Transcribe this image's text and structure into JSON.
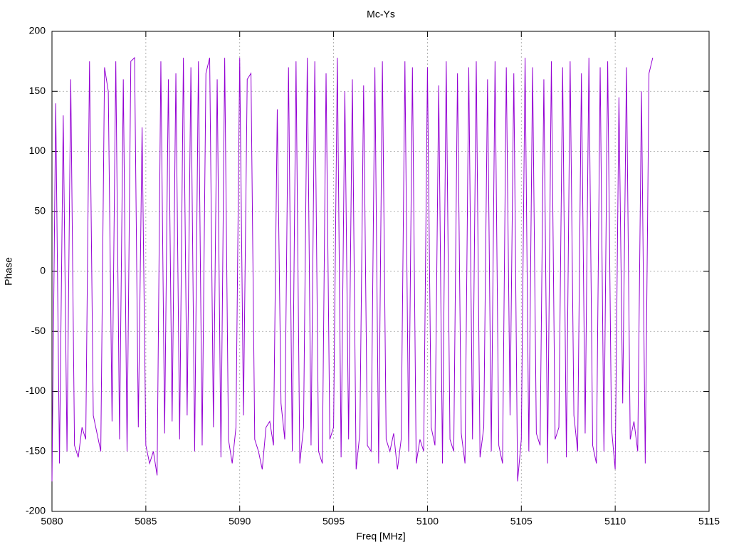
{
  "chart_data": {
    "type": "line",
    "title": "Mc-Ys",
    "x_label": "Freq [MHz]",
    "y_label": "Phase",
    "xlim": [
      5080,
      5115
    ],
    "xticks": [
      5080,
      5085,
      5090,
      5095,
      5100,
      5105,
      5110,
      5115
    ],
    "ylim": [
      -200,
      200
    ],
    "yticks": [
      -200,
      -150,
      -100,
      -50,
      0,
      50,
      100,
      150,
      200
    ],
    "grid": true,
    "series": [
      {
        "color": "#9400d3",
        "x": [
          5080,
          5080.2,
          5080.4,
          5080.6,
          5080.8,
          5081,
          5081.2,
          5081.4,
          5081.6,
          5081.8,
          5082,
          5082.2,
          5082.4,
          5082.6,
          5082.8,
          5083,
          5083.2,
          5083.4,
          5083.6,
          5083.8,
          5084,
          5084.2,
          5084.4,
          5084.6,
          5084.8,
          5085,
          5085.2,
          5085.4,
          5085.6,
          5085.8,
          5086,
          5086.2,
          5086.4,
          5086.6,
          5086.8,
          5087,
          5087.2,
          5087.4,
          5087.6,
          5087.8,
          5088,
          5088.2,
          5088.4,
          5088.6,
          5088.8,
          5089,
          5089.2,
          5089.4,
          5089.6,
          5089.8,
          5090,
          5090.2,
          5090.4,
          5090.6,
          5090.8,
          5091,
          5091.2,
          5091.4,
          5091.6,
          5091.8,
          5092,
          5092.2,
          5092.4,
          5092.6,
          5092.8,
          5093,
          5093.2,
          5093.4,
          5093.6,
          5093.8,
          5094,
          5094.2,
          5094.4,
          5094.6,
          5094.8,
          5095,
          5095.2,
          5095.4,
          5095.6,
          5095.8,
          5096,
          5096.2,
          5096.4,
          5096.6,
          5096.8,
          5097,
          5097.2,
          5097.4,
          5097.6,
          5097.8,
          5098,
          5098.2,
          5098.4,
          5098.6,
          5098.8,
          5099,
          5099.2,
          5099.4,
          5099.6,
          5099.8,
          5100,
          5100.2,
          5100.4,
          5100.6,
          5100.8,
          5101,
          5101.2,
          5101.4,
          5101.6,
          5101.8,
          5102,
          5102.2,
          5102.4,
          5102.6,
          5102.8,
          5103,
          5103.2,
          5103.4,
          5103.6,
          5103.8,
          5104,
          5104.2,
          5104.4,
          5104.6,
          5104.8,
          5105,
          5105.2,
          5105.4,
          5105.6,
          5105.8,
          5106,
          5106.2,
          5106.4,
          5106.6,
          5106.8,
          5107,
          5107.2,
          5107.4,
          5107.6,
          5107.8,
          5108,
          5108.2,
          5108.4,
          5108.6,
          5108.8,
          5109,
          5109.2,
          5109.4,
          5109.6,
          5109.8,
          5110,
          5110.2,
          5110.4,
          5110.6,
          5110.8,
          5111,
          5111.2,
          5111.4,
          5111.6,
          5111.8,
          5112
        ],
        "values": [
          -175,
          140,
          -160,
          130,
          -150,
          160,
          -145,
          -155,
          -130,
          -140,
          175,
          -120,
          -135,
          -150,
          170,
          150,
          -125,
          175,
          -140,
          160,
          -150,
          175,
          178,
          -130,
          120,
          -145,
          -160,
          -150,
          -170,
          175,
          -135,
          160,
          -125,
          165,
          -140,
          178,
          -120,
          170,
          -150,
          175,
          -145,
          165,
          178,
          -130,
          160,
          -155,
          178,
          -140,
          -160,
          -130,
          178,
          -120,
          160,
          165,
          -140,
          -150,
          -165,
          -130,
          -125,
          -145,
          135,
          -110,
          -140,
          170,
          -150,
          175,
          -160,
          -130,
          178,
          -145,
          175,
          -150,
          -160,
          165,
          -140,
          -130,
          178,
          -155,
          150,
          -140,
          160,
          -165,
          -135,
          155,
          -145,
          -150,
          170,
          -160,
          175,
          -140,
          -150,
          -135,
          -165,
          -140,
          175,
          -150,
          170,
          -160,
          -140,
          -150,
          170,
          -130,
          -145,
          155,
          -160,
          175,
          -140,
          -150,
          165,
          -135,
          -160,
          170,
          -140,
          175,
          -155,
          -130,
          160,
          -150,
          175,
          -145,
          -160,
          170,
          -120,
          165,
          -175,
          -140,
          178,
          -150,
          170,
          -135,
          -145,
          160,
          -160,
          175,
          -140,
          -130,
          170,
          -155,
          175,
          -120,
          -150,
          165,
          -135,
          178,
          -145,
          -160,
          170,
          -150,
          175,
          -130,
          -165,
          145,
          -110,
          170,
          -140,
          -125,
          -150,
          150,
          -160,
          165,
          178
        ]
      }
    ]
  }
}
